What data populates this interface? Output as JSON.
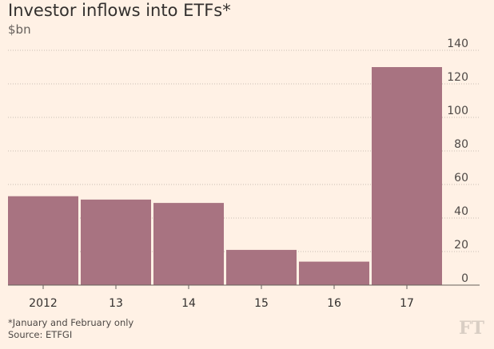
{
  "chart_data": {
    "type": "bar",
    "title": "Investor inflows into ETFs*",
    "ylabel": "$bn",
    "categories": [
      "2012",
      "13",
      "14",
      "15",
      "16",
      "17"
    ],
    "values": [
      53,
      51,
      49,
      21,
      14,
      130
    ],
    "ylim": [
      0,
      140
    ],
    "yticks": [
      0,
      20,
      40,
      60,
      80,
      100,
      120,
      140
    ],
    "grid": true,
    "bar_color": "#a87381"
  },
  "footnotes": [
    "*January and February only",
    "Source: ETFGI"
  ],
  "logo": "FT"
}
